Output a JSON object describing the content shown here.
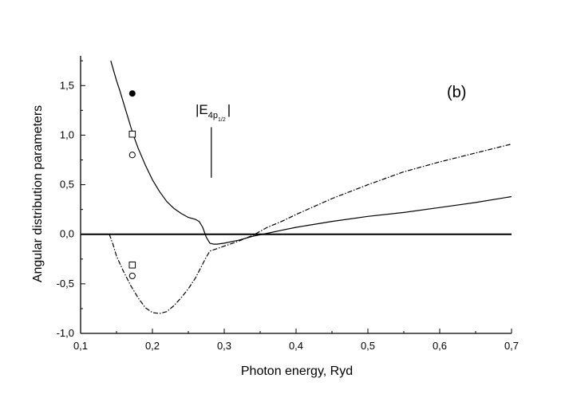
{
  "chart_data": {
    "type": "line",
    "xlabel": "Photon energy, Ryd",
    "ylabel": "Angular distribution parameters",
    "panel_label": "(b)",
    "xlim": [
      0.1,
      0.7
    ],
    "ylim": [
      -1.0,
      1.8
    ],
    "x_ticks": [
      0.1,
      0.2,
      0.3,
      0.4,
      0.5,
      0.6,
      0.7
    ],
    "x_tick_labels": [
      "0,1",
      "0,2",
      "0,3",
      "0,4",
      "0,5",
      "0,6",
      "0,7"
    ],
    "y_ticks": [
      -1.0,
      -0.5,
      0.0,
      0.5,
      1.0,
      1.5
    ],
    "y_tick_labels": [
      "-1,0",
      "-0,5",
      "0,0",
      "0,5",
      "1,0",
      "1,5"
    ],
    "grid": false,
    "annotation": {
      "main": "|E",
      "sub": "4p",
      "subsub": "1/2",
      "close": "|",
      "x": 0.282,
      "line_y": [
        0.57,
        1.08
      ]
    },
    "series": [
      {
        "style": "solid",
        "x": [
          0.142,
          0.15,
          0.155,
          0.16,
          0.165,
          0.17,
          0.175,
          0.18,
          0.19,
          0.2,
          0.21,
          0.22,
          0.23,
          0.24,
          0.25,
          0.26,
          0.265,
          0.27,
          0.275,
          0.28,
          0.285,
          0.29,
          0.3,
          0.32,
          0.34,
          0.36,
          0.38,
          0.4,
          0.45,
          0.5,
          0.55,
          0.6,
          0.65,
          0.7
        ],
        "y": [
          1.75,
          1.55,
          1.44,
          1.32,
          1.2,
          1.08,
          0.97,
          0.87,
          0.7,
          0.55,
          0.43,
          0.33,
          0.26,
          0.21,
          0.17,
          0.15,
          0.13,
          0.07,
          -0.03,
          -0.09,
          -0.1,
          -0.1,
          -0.09,
          -0.06,
          -0.02,
          0.01,
          0.04,
          0.07,
          0.13,
          0.18,
          0.22,
          0.27,
          0.32,
          0.38
        ]
      },
      {
        "style": "dash-dot",
        "x": [
          0.14,
          0.145,
          0.15,
          0.16,
          0.17,
          0.18,
          0.19,
          0.2,
          0.21,
          0.22,
          0.23,
          0.24,
          0.25,
          0.26,
          0.27,
          0.275,
          0.28,
          0.3,
          0.32,
          0.34,
          0.36,
          0.38,
          0.4,
          0.45,
          0.5,
          0.55,
          0.6,
          0.65,
          0.7
        ],
        "y": [
          0.0,
          -0.1,
          -0.22,
          -0.38,
          -0.52,
          -0.64,
          -0.74,
          -0.79,
          -0.8,
          -0.78,
          -0.72,
          -0.64,
          -0.55,
          -0.44,
          -0.3,
          -0.23,
          -0.17,
          -0.12,
          -0.07,
          -0.01,
          0.07,
          0.13,
          0.2,
          0.36,
          0.5,
          0.63,
          0.73,
          0.82,
          0.91
        ]
      }
    ],
    "points": [
      {
        "marker": "filled-circle",
        "x": 0.172,
        "y": 1.42
      },
      {
        "marker": "open-square",
        "x": 0.172,
        "y": 1.01
      },
      {
        "marker": "open-circle",
        "x": 0.172,
        "y": 0.8
      },
      {
        "marker": "open-square",
        "x": 0.172,
        "y": -0.31
      },
      {
        "marker": "open-circle",
        "x": 0.172,
        "y": -0.42
      }
    ],
    "reference_line": {
      "y": 0.0,
      "style": "solid"
    }
  }
}
